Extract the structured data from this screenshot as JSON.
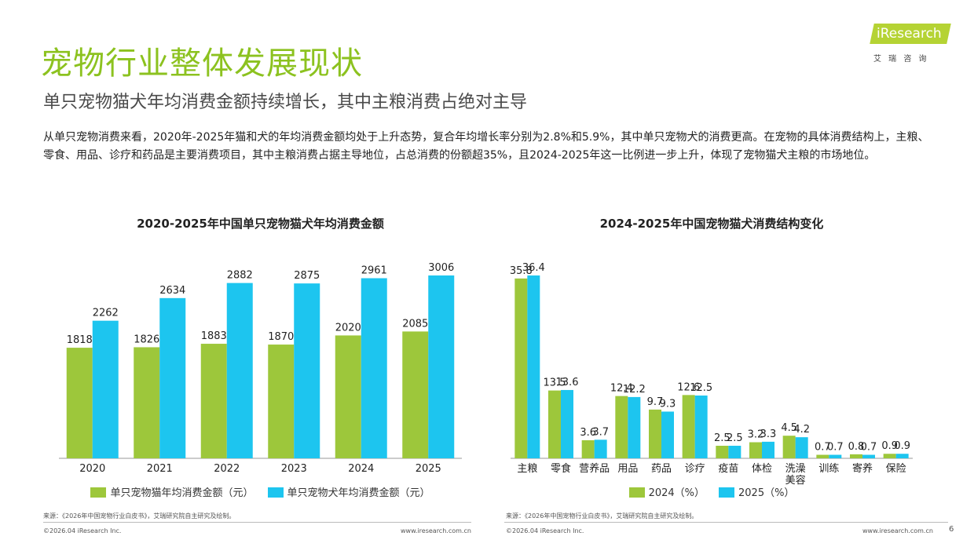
{
  "header": {
    "title": "宠物行业整体发展现状",
    "subtitle": "单只宠物猫犬年均消费金额持续增长，其中主粮消费占绝对主导",
    "body": "从单只宠物消费来看，2020年-2025年猫和犬的年均消费金额均处于上升态势，复合年均增长率分别为2.8%和5.9%，其中单只宠物犬的消费更高。在宠物的具体消费结构上，主粮、零食、用品、诊疗和药品是主要消费项目，其中主粮消费占据主导地位，占总消费的份额超35%，且2024-2025年这一比例进一步上升，体现了宠物猫犬主粮的市场地位。"
  },
  "logo": {
    "brand": "iResearch",
    "name": "艾 瑞 咨 询"
  },
  "chart_data": [
    {
      "type": "bar",
      "title": "2020-2025年中国单只宠物猫犬年均消费金额",
      "categories": [
        "2020",
        "2021",
        "2022",
        "2023",
        "2024",
        "2025"
      ],
      "series": [
        {
          "name": "单只宠物猫年均消费金额（元）",
          "color": "#9dc73b",
          "values": [
            1818,
            1826,
            1883,
            1870,
            2020,
            2085
          ]
        },
        {
          "name": "单只宠物犬年均消费金额（元）",
          "color": "#1dc5ef",
          "values": [
            2262,
            2634,
            2882,
            2875,
            2961,
            3006
          ]
        }
      ]
    },
    {
      "type": "bar",
      "title": "2024-2025年中国宠物猫犬消费结构变化",
      "categories": [
        "主粮",
        "零食",
        "营养品",
        "用品",
        "药品",
        "诊疗",
        "疫苗",
        "体检",
        "洗澡\n美容",
        "训练",
        "寄养",
        "保险"
      ],
      "series": [
        {
          "name": "2024（%）",
          "color": "#9dc73b",
          "values": [
            35.8,
            13.5,
            3.6,
            12.4,
            9.7,
            12.6,
            2.5,
            3.2,
            4.5,
            0.7,
            0.8,
            0.9
          ]
        },
        {
          "name": "2025（%）",
          "color": "#1dc5ef",
          "values": [
            36.4,
            13.6,
            3.7,
            12.2,
            9.3,
            12.5,
            2.5,
            3.3,
            4.2,
            0.7,
            0.7,
            0.9
          ]
        }
      ]
    }
  ],
  "footers": [
    {
      "source": "来源：《2026年中国宠物行业白皮书》，艾瑞研究院自主研究及绘制。",
      "copyright": "©2026.04 iResearch Inc.",
      "url": "www.iresearch.com.cn"
    },
    {
      "source": "来源：《2026年中国宠物行业白皮书》，艾瑞研究院自主研究及绘制。",
      "copyright": "©2026.04 iResearch Inc.",
      "url": "www.iresearch.com.cn"
    }
  ],
  "page_number": "6"
}
